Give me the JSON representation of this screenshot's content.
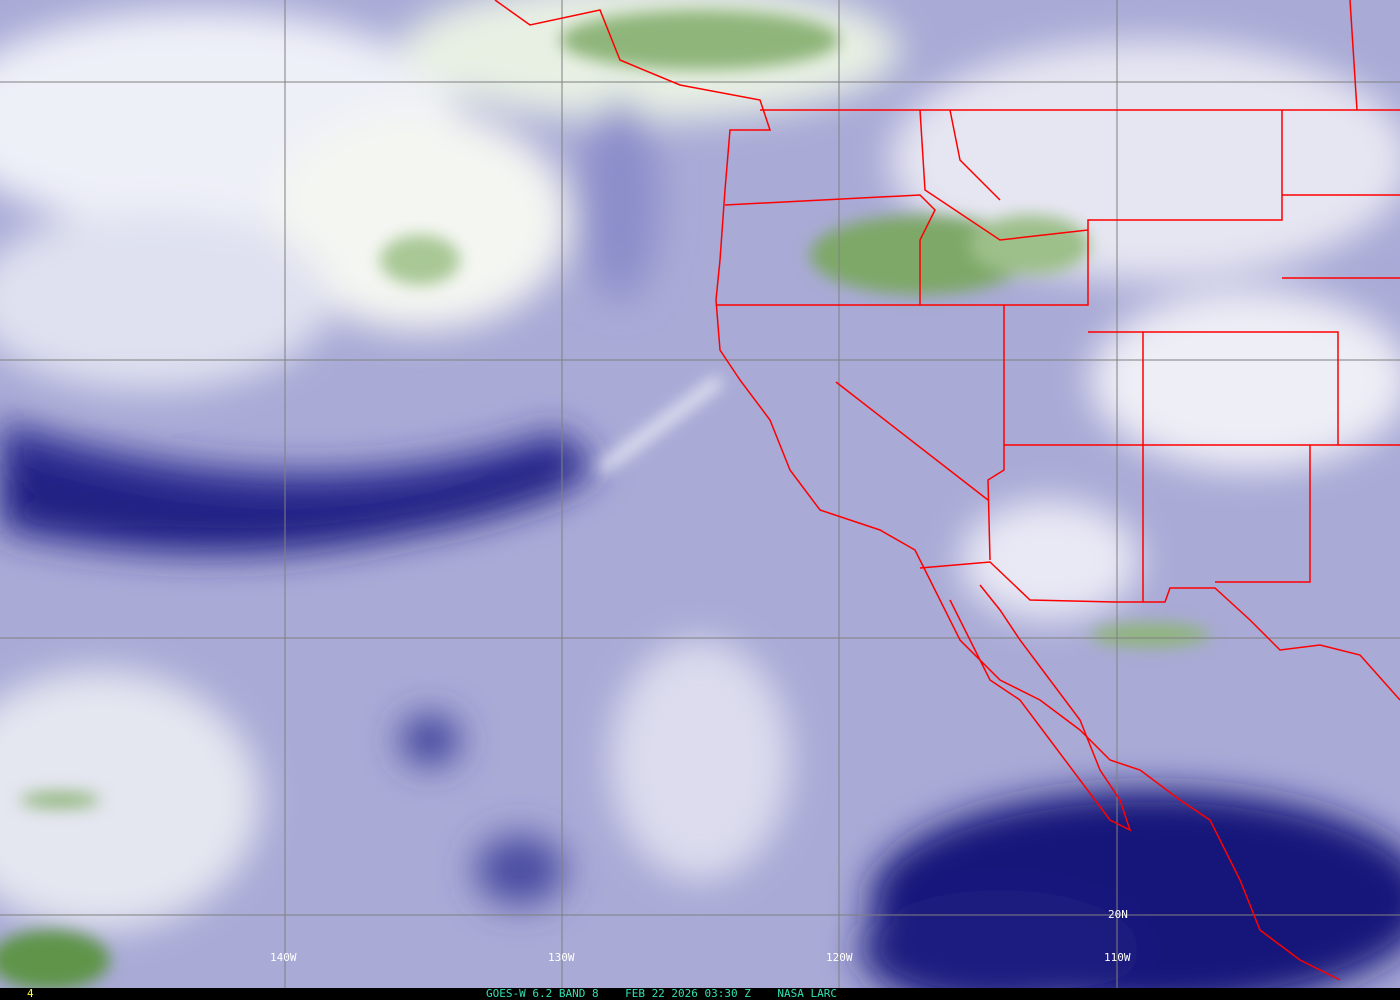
{
  "image": {
    "satellite": "GOES-W",
    "channel": "6.2",
    "band": "BAND 8",
    "date": "FEB 22 2026",
    "time": "03:30 Z",
    "source": "NASA LARC",
    "frame": "4",
    "caption": "GOES-W 6.2 BAND 8    FEB 22 2026 03:30 Z    NASA LARC"
  },
  "grid": {
    "longitude_labels": [
      "140W",
      "130W",
      "120W",
      "110W"
    ],
    "latitude_labels": [
      "20N"
    ],
    "grid_color": "#808080"
  },
  "colors": {
    "dry_air": "#14147a",
    "moist_air": "#ffffff",
    "mid": "#a9aad6",
    "high_cloud": "#6a9a50",
    "boundaries": "#ff0000",
    "caption_text": "#30e0b0",
    "frame_text": "#ffff40"
  }
}
